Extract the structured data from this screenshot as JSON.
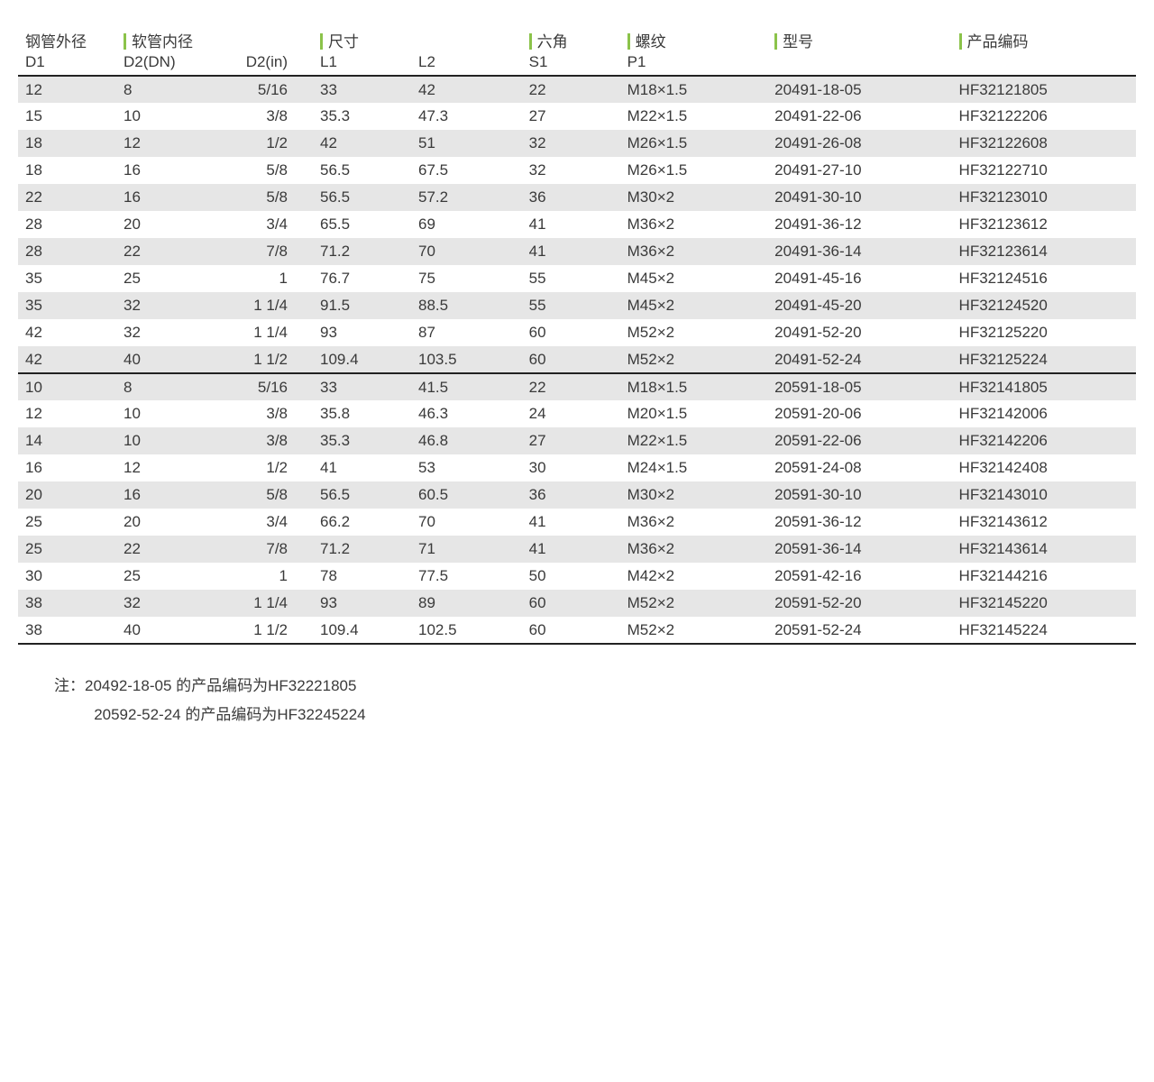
{
  "headers": {
    "group": {
      "d1": "钢管外径",
      "d2": "软管内径",
      "size": "尺寸",
      "hex": "六角",
      "thread": "螺纹",
      "model": "型号",
      "code": "产品编码"
    },
    "sub": {
      "d1": "D1",
      "d2dn": "D2(DN)",
      "d2in": "D2(in)",
      "l1": "L1",
      "l2": "L2",
      "s1": "S1",
      "p1": "P1"
    }
  },
  "section1": [
    {
      "d1": "12",
      "d2dn": "8",
      "d2in": "5/16",
      "l1": "33",
      "l2": "42",
      "s1": "22",
      "p1": "M18×1.5",
      "model": "20491-18-05",
      "code": "HF32121805"
    },
    {
      "d1": "15",
      "d2dn": "10",
      "d2in": "3/8",
      "l1": "35.3",
      "l2": "47.3",
      "s1": "27",
      "p1": "M22×1.5",
      "model": "20491-22-06",
      "code": "HF32122206"
    },
    {
      "d1": "18",
      "d2dn": "12",
      "d2in": "1/2",
      "l1": "42",
      "l2": "51",
      "s1": "32",
      "p1": "M26×1.5",
      "model": "20491-26-08",
      "code": "HF32122608"
    },
    {
      "d1": "18",
      "d2dn": "16",
      "d2in": "5/8",
      "l1": "56.5",
      "l2": "67.5",
      "s1": "32",
      "p1": "M26×1.5",
      "model": "20491-27-10",
      "code": "HF32122710"
    },
    {
      "d1": "22",
      "d2dn": "16",
      "d2in": "5/8",
      "l1": "56.5",
      "l2": "57.2",
      "s1": "36",
      "p1": "M30×2",
      "model": "20491-30-10",
      "code": "HF32123010"
    },
    {
      "d1": "28",
      "d2dn": "20",
      "d2in": "3/4",
      "l1": "65.5",
      "l2": "69",
      "s1": "41",
      "p1": "M36×2",
      "model": "20491-36-12",
      "code": "HF32123612"
    },
    {
      "d1": "28",
      "d2dn": "22",
      "d2in": "7/8",
      "l1": "71.2",
      "l2": "70",
      "s1": "41",
      "p1": "M36×2",
      "model": "20491-36-14",
      "code": "HF32123614"
    },
    {
      "d1": "35",
      "d2dn": "25",
      "d2in": "1",
      "l1": "76.7",
      "l2": "75",
      "s1": "55",
      "p1": "M45×2",
      "model": "20491-45-16",
      "code": "HF32124516"
    },
    {
      "d1": "35",
      "d2dn": "32",
      "d2in": "1 1/4",
      "l1": "91.5",
      "l2": "88.5",
      "s1": "55",
      "p1": "M45×2",
      "model": "20491-45-20",
      "code": "HF32124520"
    },
    {
      "d1": "42",
      "d2dn": "32",
      "d2in": "1 1/4",
      "l1": "93",
      "l2": "87",
      "s1": "60",
      "p1": "M52×2",
      "model": "20491-52-20",
      "code": "HF32125220"
    },
    {
      "d1": "42",
      "d2dn": "40",
      "d2in": "1 1/2",
      "l1": "109.4",
      "l2": "103.5",
      "s1": "60",
      "p1": "M52×2",
      "model": "20491-52-24",
      "code": "HF32125224"
    }
  ],
  "section2": [
    {
      "d1": "10",
      "d2dn": "8",
      "d2in": "5/16",
      "l1": "33",
      "l2": "41.5",
      "s1": "22",
      "p1": "M18×1.5",
      "model": "20591-18-05",
      "code": "HF32141805"
    },
    {
      "d1": "12",
      "d2dn": "10",
      "d2in": "3/8",
      "l1": "35.8",
      "l2": "46.3",
      "s1": "24",
      "p1": "M20×1.5",
      "model": "20591-20-06",
      "code": "HF32142006"
    },
    {
      "d1": "14",
      "d2dn": "10",
      "d2in": "3/8",
      "l1": "35.3",
      "l2": "46.8",
      "s1": "27",
      "p1": "M22×1.5",
      "model": "20591-22-06",
      "code": "HF32142206"
    },
    {
      "d1": "16",
      "d2dn": "12",
      "d2in": "1/2",
      "l1": "41",
      "l2": "53",
      "s1": "30",
      "p1": "M24×1.5",
      "model": "20591-24-08",
      "code": "HF32142408"
    },
    {
      "d1": "20",
      "d2dn": "16",
      "d2in": "5/8",
      "l1": "56.5",
      "l2": "60.5",
      "s1": "36",
      "p1": "M30×2",
      "model": "20591-30-10",
      "code": "HF32143010"
    },
    {
      "d1": "25",
      "d2dn": "20",
      "d2in": "3/4",
      "l1": "66.2",
      "l2": "70",
      "s1": "41",
      "p1": "M36×2",
      "model": "20591-36-12",
      "code": "HF32143612"
    },
    {
      "d1": "25",
      "d2dn": "22",
      "d2in": "7/8",
      "l1": "71.2",
      "l2": "71",
      "s1": "41",
      "p1": "M36×2",
      "model": "20591-36-14",
      "code": "HF32143614"
    },
    {
      "d1": "30",
      "d2dn": "25",
      "d2in": "1",
      "l1": "78",
      "l2": "77.5",
      "s1": "50",
      "p1": "M42×2",
      "model": "20591-42-16",
      "code": "HF32144216"
    },
    {
      "d1": "38",
      "d2dn": "32",
      "d2in": "1 1/4",
      "l1": "93",
      "l2": "89",
      "s1": "60",
      "p1": "M52×2",
      "model": "20591-52-20",
      "code": "HF32145220"
    },
    {
      "d1": "38",
      "d2dn": "40",
      "d2in": "1 1/2",
      "l1": "109.4",
      "l2": "102.5",
      "s1": "60",
      "p1": "M52×2",
      "model": "20591-52-24",
      "code": "HF32145224"
    }
  ],
  "notes": {
    "prefix": "注：",
    "line1": "20492-18-05 的产品编码为HF32221805",
    "line2": "20592-52-24 的产品编码为HF32245224"
  },
  "colors": {
    "accent": "#8bc34a",
    "zebra": "#e6e6e6",
    "text": "#3a3a3a",
    "border": "#222222"
  }
}
